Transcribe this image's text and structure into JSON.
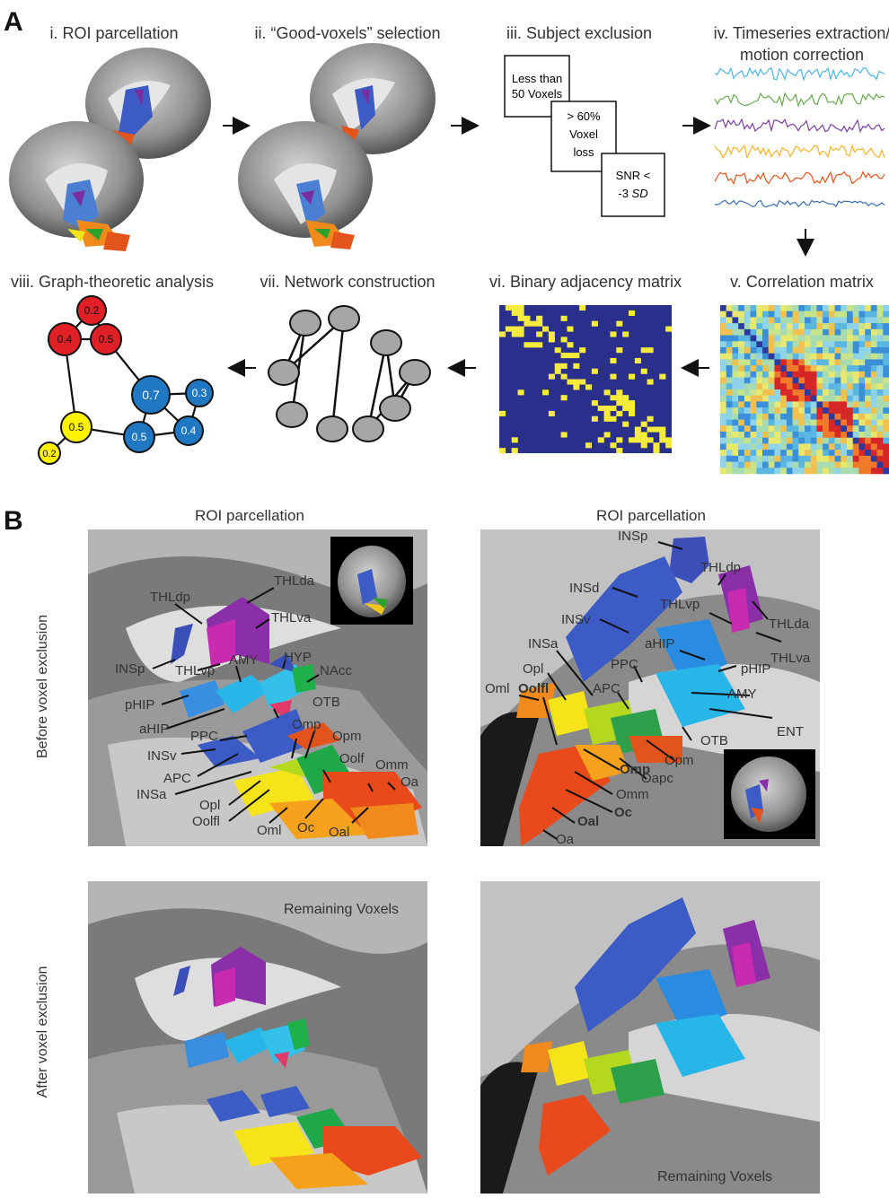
{
  "panel_a": {
    "letter": "A",
    "steps": {
      "s1": "i. ROI parcellation",
      "s2": "ii. “Good-voxels” selection",
      "s3": "iii. Subject exclusion",
      "s4a": "iv. Timeseries extraction/",
      "s4b": "motion correction",
      "s5": "v. Correlation matrix",
      "s6": "vi. Binary adjacency matrix",
      "s7": "vii. Network construction",
      "s8": "viii. Graph-theoretic analysis"
    },
    "exclusion": {
      "box1a": "Less than",
      "box1b": "50 Voxels",
      "box2a": "> 60%",
      "box2b": "Voxel",
      "box2c": "loss",
      "box3a": "SNR <",
      "box3b": "-3 ",
      "box3c": "SD"
    },
    "trace_colors": [
      "#4fb3e0",
      "#6aa84f",
      "#7b3f9e",
      "#f0b429",
      "#e2541c",
      "#3a6fb0"
    ],
    "graph": {
      "n1": "0.2",
      "n2": "0.4",
      "n3": "0.5",
      "n4": "0.7",
      "n5": "0.3",
      "n6": "0.5",
      "n7": "0.4",
      "n8": "0.5",
      "n9": "0.2"
    },
    "colors": {
      "red": "#e01f26",
      "blue": "#1f78c1",
      "yellow": "#fff200",
      "gray": "#a6a6a6",
      "navy": "#2b2f8c"
    }
  },
  "panel_b": {
    "letter": "B",
    "col_title_left": "ROI parcellation",
    "col_title_right": "ROI parcellation",
    "row_label_top": "Before voxel exclusion",
    "row_label_bottom": "After voxel exclusion",
    "remaining": "Remaining Voxels",
    "left_labels": {
      "THLdp": "THLdp",
      "THLda": "THLda",
      "THLva": "THLva",
      "INSp": "INSp",
      "THLvp": "THLvp",
      "AMY": "AMY",
      "HYP": "HYP",
      "NAcc": "NAcc",
      "pHIP": "pHIP",
      "aHIP": "aHIP",
      "OTB": "OTB",
      "PPC": "PPC",
      "Omp": "Omp",
      "Opm": "Opm",
      "INSv": "INSv",
      "Oolf": "Oolf",
      "Omm": "Omm",
      "APC": "APC",
      "Oa": "Oa",
      "INSa": "INSa",
      "Opl": "Opl",
      "Oolfl": "Oolfl",
      "Oml": "Oml",
      "Oc": "Oc",
      "Oal": "Oal"
    },
    "right_labels": {
      "INSp": "INSp",
      "THLdp": "THLdp",
      "INSd": "INSd",
      "THLvp": "THLvp",
      "THLda": "THLda",
      "INSv": "INSv",
      "aHIP": "aHIP",
      "THLva": "THLva",
      "INSa": "INSa",
      "pHIP": "pHIP",
      "Opl": "Opl",
      "PPC": "PPC",
      "Oml": "Oml",
      "Oolfl": "Oolfl",
      "APC": "APC",
      "AMY": "AMY",
      "ENT": "ENT",
      "OTB": "OTB",
      "Opm": "Opm",
      "Omp": "Omp",
      "Oapc": "Oapc",
      "Omm": "Omm",
      "Oc": "Oc",
      "Oal": "Oal",
      "Oa": "Oa"
    }
  }
}
